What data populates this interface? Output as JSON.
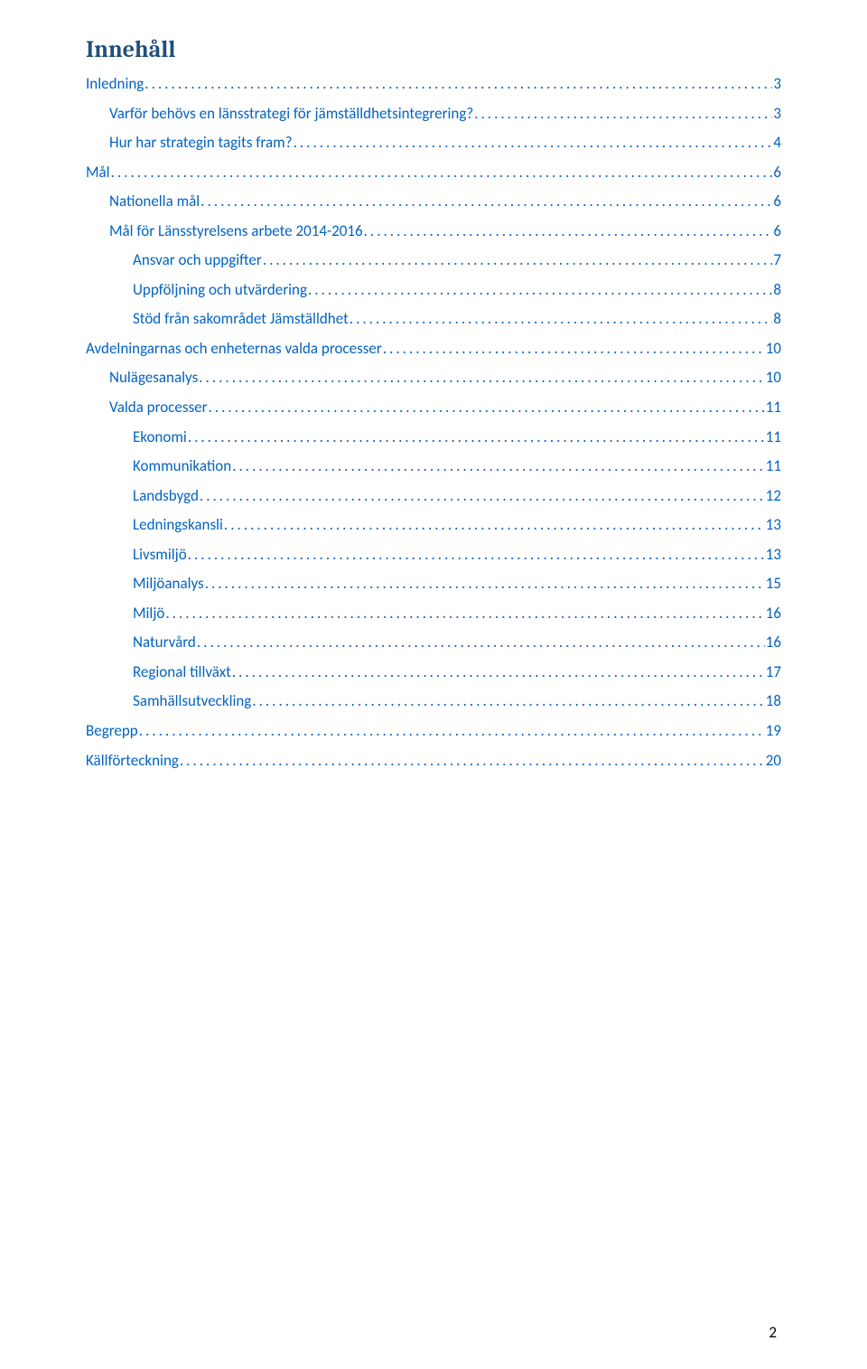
{
  "title": "Innehåll",
  "title_color": "#1f4e79",
  "link_color": "#0563c1",
  "text_color": "#000000",
  "page_number": "2",
  "entries": [
    {
      "label": "Inledning",
      "page": "3",
      "indent": 0
    },
    {
      "label": "Varför behövs en länsstrategi för jämställdhetsintegrering?",
      "page": "3",
      "indent": 1
    },
    {
      "label": "Hur har strategin tagits fram?",
      "page": "4",
      "indent": 1
    },
    {
      "label": "Mål",
      "page": "6",
      "indent": 0
    },
    {
      "label": "Nationella mål",
      "page": "6",
      "indent": 1
    },
    {
      "label": "Mål för Länsstyrelsens arbete 2014-2016",
      "page": "6",
      "indent": 1
    },
    {
      "label": "Ansvar och uppgifter",
      "page": "7",
      "indent": 2
    },
    {
      "label": "Uppföljning och utvärdering",
      "page": "8",
      "indent": 2
    },
    {
      "label": "Stöd från sakområdet Jämställdhet",
      "page": "8",
      "indent": 2
    },
    {
      "label": "Avdelningarnas och enheternas valda processer",
      "page": "10",
      "indent": 0
    },
    {
      "label": "Nulägesanalys",
      "page": "10",
      "indent": 1
    },
    {
      "label": "Valda processer",
      "page": "11",
      "indent": 1
    },
    {
      "label": "Ekonomi",
      "page": "11",
      "indent": 2
    },
    {
      "label": "Kommunikation",
      "page": "11",
      "indent": 2
    },
    {
      "label": "Landsbygd",
      "page": "12",
      "indent": 2
    },
    {
      "label": "Ledningskansli",
      "page": "13",
      "indent": 2
    },
    {
      "label": "Livsmiljö",
      "page": "13",
      "indent": 2
    },
    {
      "label": "Miljöanalys",
      "page": "15",
      "indent": 2
    },
    {
      "label": "Miljö",
      "page": "16",
      "indent": 2
    },
    {
      "label": "Naturvård",
      "page": "16",
      "indent": 2
    },
    {
      "label": "Regional tillväxt",
      "page": "17",
      "indent": 2
    },
    {
      "label": "Samhällsutveckling",
      "page": "18",
      "indent": 2
    },
    {
      "label": "Begrepp",
      "page": "19",
      "indent": 0
    },
    {
      "label": "Källförteckning",
      "page": "20",
      "indent": 0
    }
  ]
}
